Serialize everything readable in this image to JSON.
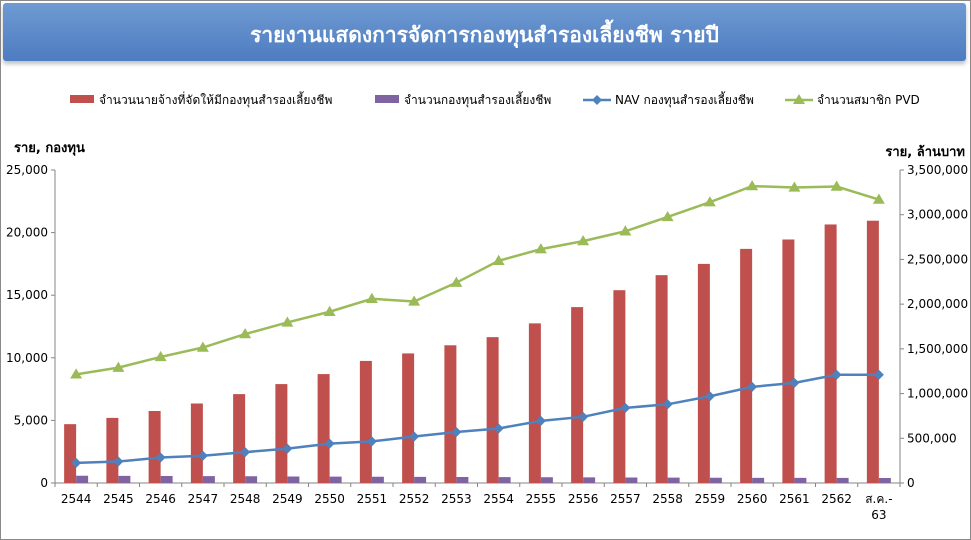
{
  "header": {
    "title": "รายงานแสดงการจัดการกองทุนสำรองเลี้ยงชีพ รายปี"
  },
  "chart_data": {
    "type": "bar",
    "categories": [
      "2544",
      "2545",
      "2546",
      "2547",
      "2548",
      "2549",
      "2550",
      "2551",
      "2552",
      "2553",
      "2554",
      "2555",
      "2556",
      "2557",
      "2558",
      "2559",
      "2560",
      "2561",
      "2562",
      "ส.ค.-63"
    ],
    "ylabel_left": "ราย, กองทุน",
    "ylabel_right": "ราย, ล้านบาท",
    "ylim_left": [
      0,
      25000
    ],
    "ylim_right": [
      0,
      3500000
    ],
    "yticks_left": [
      "0",
      "5,000",
      "10,000",
      "15,000",
      "20,000",
      "25,000"
    ],
    "yticks_right": [
      "0",
      "500,000",
      "1,000,000",
      "1,500,000",
      "2,000,000",
      "2,500,000",
      "3,000,000",
      "3,500,000"
    ],
    "grid": false,
    "legend_position": "top",
    "series": [
      {
        "name": "จำนวนนายจ้างที่จัดให้มีกองทุนสำรองเลี้ยงชีพ",
        "type": "bar",
        "axis": "left",
        "color": "#c0504d",
        "values": [
          4700,
          5200,
          5750,
          6350,
          7100,
          7900,
          8700,
          9750,
          10350,
          11000,
          11650,
          12750,
          14050,
          15400,
          16600,
          17500,
          18700,
          19450,
          20650,
          20950
        ]
      },
      {
        "name": "จำนวนกองทุนสำรองเลี้ยงชีพ",
        "type": "bar",
        "axis": "left",
        "color": "#8064a2",
        "values": [
          580,
          570,
          560,
          550,
          540,
          520,
          510,
          500,
          490,
          480,
          470,
          460,
          450,
          440,
          430,
          420,
          410,
          410,
          405,
          400
        ]
      },
      {
        "name": "NAV กองทุนสำรองเลี้ยงชีพ",
        "type": "line",
        "axis": "right",
        "color": "#4f81bd",
        "marker": "diamond",
        "values": [
          225000,
          240000,
          285000,
          305000,
          345000,
          385000,
          440000,
          465000,
          520000,
          570000,
          610000,
          695000,
          740000,
          840000,
          880000,
          970000,
          1075000,
          1120000,
          1210000,
          1210000
        ]
      },
      {
        "name": "จำนวนสมาชิก PVD",
        "type": "line",
        "axis": "right",
        "color": "#9bbb59",
        "marker": "triangle",
        "values": [
          1215000,
          1290000,
          1410000,
          1515000,
          1665000,
          1795000,
          1915000,
          2060000,
          2030000,
          2240000,
          2485000,
          2615000,
          2705000,
          2815000,
          2975000,
          3140000,
          3320000,
          3305000,
          3315000,
          3170000
        ]
      }
    ]
  }
}
